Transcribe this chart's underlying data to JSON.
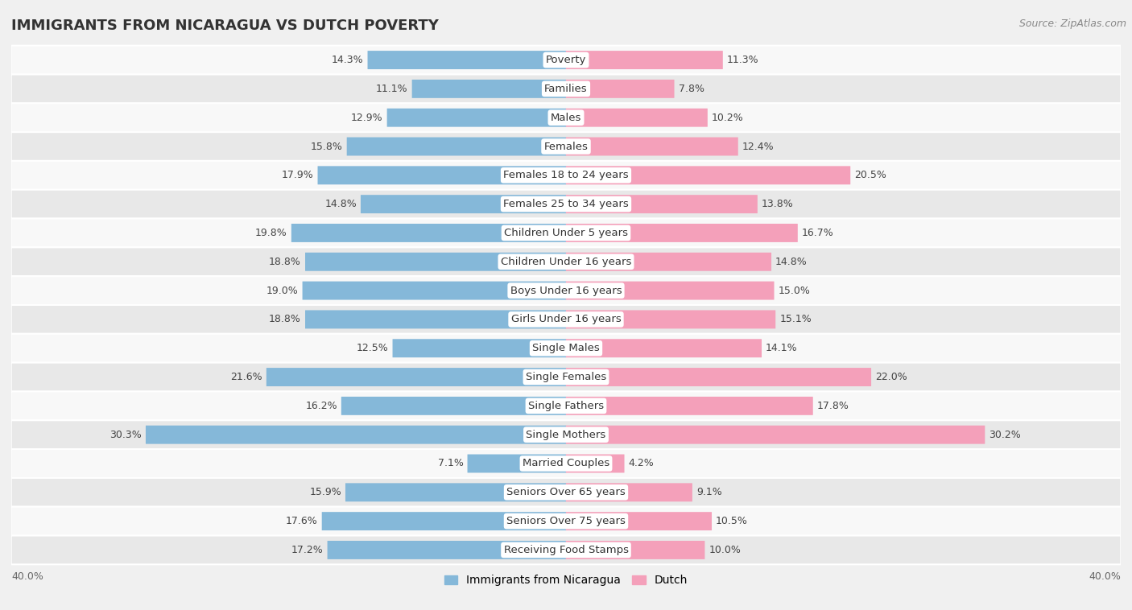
{
  "title": "IMMIGRANTS FROM NICARAGUA VS DUTCH POVERTY",
  "source": "Source: ZipAtlas.com",
  "categories": [
    "Poverty",
    "Families",
    "Males",
    "Females",
    "Females 18 to 24 years",
    "Females 25 to 34 years",
    "Children Under 5 years",
    "Children Under 16 years",
    "Boys Under 16 years",
    "Girls Under 16 years",
    "Single Males",
    "Single Females",
    "Single Fathers",
    "Single Mothers",
    "Married Couples",
    "Seniors Over 65 years",
    "Seniors Over 75 years",
    "Receiving Food Stamps"
  ],
  "nicaragua_values": [
    14.3,
    11.1,
    12.9,
    15.8,
    17.9,
    14.8,
    19.8,
    18.8,
    19.0,
    18.8,
    12.5,
    21.6,
    16.2,
    30.3,
    7.1,
    15.9,
    17.6,
    17.2
  ],
  "dutch_values": [
    11.3,
    7.8,
    10.2,
    12.4,
    20.5,
    13.8,
    16.7,
    14.8,
    15.0,
    15.1,
    14.1,
    22.0,
    17.8,
    30.2,
    4.2,
    9.1,
    10.5,
    10.0
  ],
  "nicaragua_color": "#85b8d9",
  "dutch_color": "#f4a0ba",
  "bg_color": "#f0f0f0",
  "row_bg_light": "#f8f8f8",
  "row_bg_dark": "#e8e8e8",
  "label_bg": "#ffffff",
  "xlim": 40.0,
  "bar_height": 0.62,
  "legend_nicaragua": "Immigrants from Nicaragua",
  "legend_dutch": "Dutch",
  "value_fontsize": 9.0,
  "label_fontsize": 9.5
}
